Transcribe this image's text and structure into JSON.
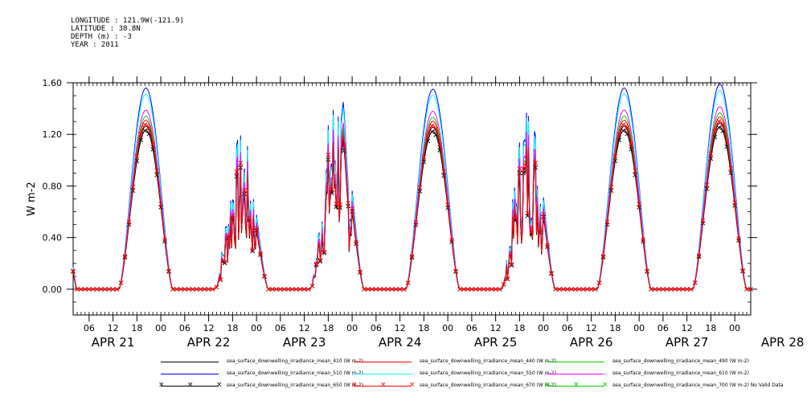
{
  "header": {
    "line1": "LONGITUDE : 121.9W(-121.9)",
    "line2": "LATITUDE : 38.8N",
    "line3": "DEPTH (m) : -3",
    "line4": "YEAR : 2011"
  },
  "chart_data": {
    "type": "line",
    "ylabel": "W m-2",
    "ylim": [
      -0.2,
      1.6
    ],
    "yticks": [
      "0.00",
      "0.40",
      "0.80",
      "1.20",
      "1.60"
    ],
    "x_tick_labels": [
      "06",
      "12",
      "18",
      "00",
      "06",
      "12",
      "18",
      "00",
      "06",
      "12",
      "18",
      "00",
      "06",
      "12",
      "18",
      "00",
      "06",
      "12",
      "18",
      "00",
      "06",
      "12",
      "18",
      "00",
      "06",
      "12",
      "18",
      "00"
    ],
    "date_labels": [
      "APR 21",
      "APR 22",
      "APR 23",
      "APR 24",
      "APR 25",
      "APR 26",
      "APR 27",
      "APR 28"
    ],
    "x_unit": "hours since APR 21 00:00",
    "xlim": [
      2,
      172
    ],
    "days": [
      {
        "day": "APR 21",
        "peak": 1.56,
        "type": "clear"
      },
      {
        "day": "APR 22",
        "peak": 1.12,
        "type": "cloudy"
      },
      {
        "day": "APR 23",
        "peak": 1.48,
        "type": "cloudy"
      },
      {
        "day": "APR 24",
        "peak": 1.55,
        "type": "clear"
      },
      {
        "day": "APR 25",
        "peak": 1.38,
        "type": "cloudy"
      },
      {
        "day": "APR 26",
        "peak": 1.56,
        "type": "clear"
      },
      {
        "day": "APR 27",
        "peak": 1.59,
        "type": "clear"
      }
    ],
    "series": [
      {
        "name": "sea_surface_downwelling_irradiance_mean_410 (W m-2)",
        "color": "#000000",
        "scale": 0.81,
        "marker": ""
      },
      {
        "name": "sea_surface_downwelling_irradiance_mean_440 (W m-2)",
        "color": "#ff0000",
        "scale": 0.84,
        "marker": ""
      },
      {
        "name": "sea_surface_downwelling_irradiance_mean_490 (W m-2)",
        "color": "#00cc00",
        "scale": 0.86,
        "marker": ""
      },
      {
        "name": "sea_surface_downwelling_irradiance_mean_510 (W m-2)",
        "color": "#0000ff",
        "scale": 1.0,
        "marker": ""
      },
      {
        "name": "sea_surface_downwelling_irradiance_mean_550 (W m-2)",
        "color": "#00ffff",
        "scale": 0.97,
        "marker": ""
      },
      {
        "name": "sea_surface_downwelling_irradiance_mean_610 (W m-2)",
        "color": "#ff00ff",
        "scale": 0.89,
        "marker": ""
      },
      {
        "name": "sea_surface_downwelling_irradiance_mean_650 (W m-2)",
        "color": "#000000",
        "scale": 0.79,
        "marker": "x"
      },
      {
        "name": "sea_surface_downwelling_irradiance_mean_670 (W m-2)",
        "color": "#ff0000",
        "scale": 0.82,
        "marker": "x"
      },
      {
        "name": "sea_surface_downwelling_irradiance_mean_700 (W m-2) No Valid Data",
        "color": "#00cc00",
        "scale": 0,
        "marker": "x"
      }
    ],
    "grid": false,
    "legend_position": "bottom"
  }
}
